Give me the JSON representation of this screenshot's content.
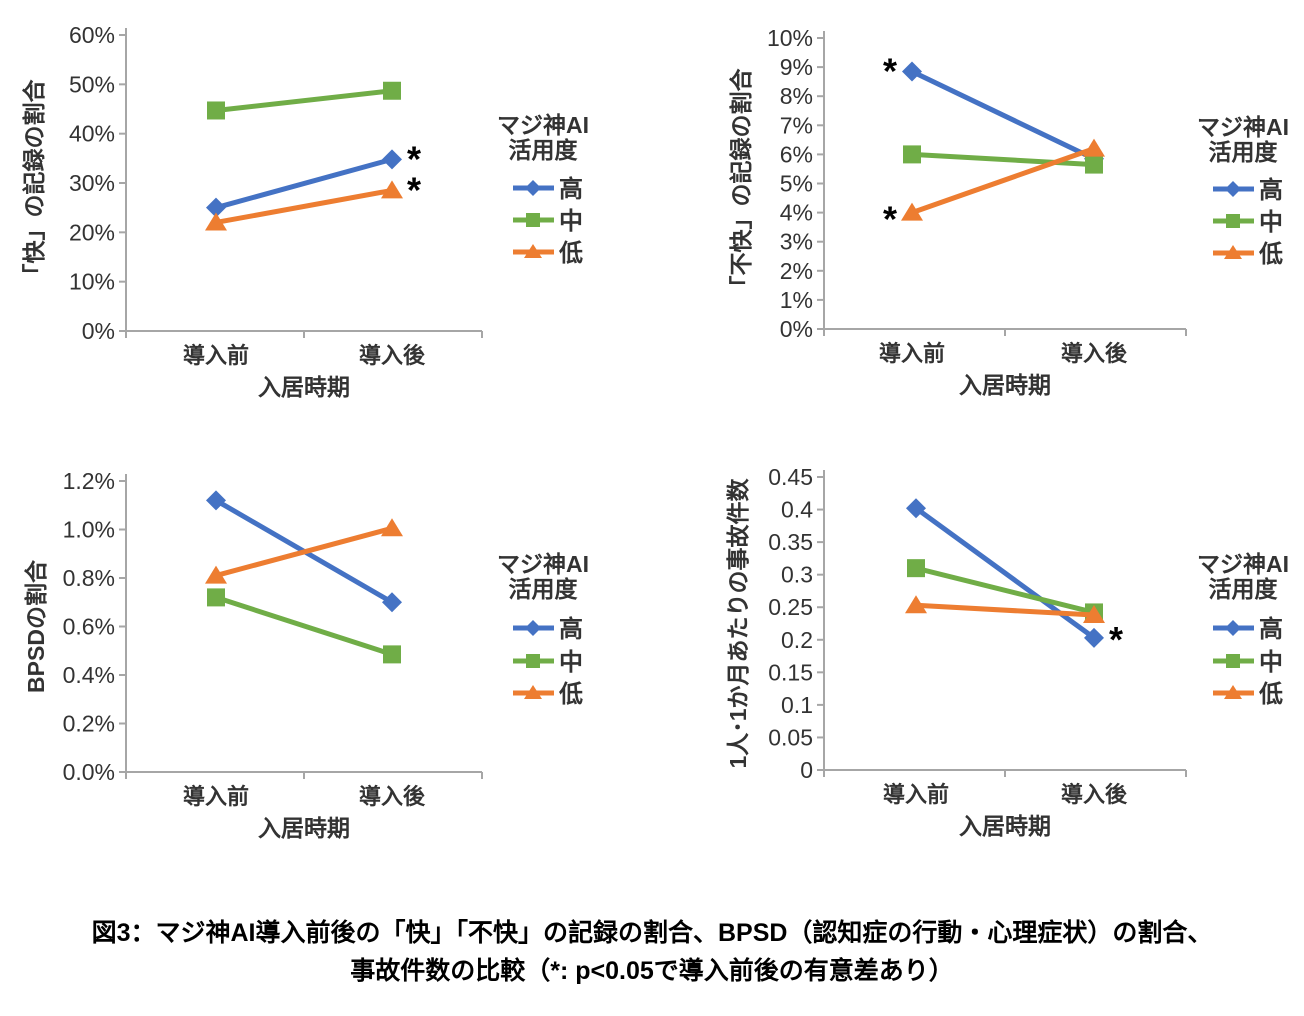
{
  "figure": {
    "caption_line1": "図3：マジ神AI導入前後の「快」「不快」の記録の割合、BPSD（認知症の行動・心理症状）の割合、",
    "caption_line2": "事故件数の比較（*: p<0.05で導入前後の有意差あり）"
  },
  "colors": {
    "high": "#4472C4",
    "mid": "#70AD47",
    "low": "#ED7D31",
    "axis": "#A6A6A6",
    "text": "#333333",
    "asterisk": "#000000"
  },
  "legend": {
    "title_line1": "マジ神AI",
    "title_line2": "活用度",
    "items": [
      {
        "key": "high",
        "label": "高",
        "marker": "diamond"
      },
      {
        "key": "mid",
        "label": "中",
        "marker": "square"
      },
      {
        "key": "low",
        "label": "低",
        "marker": "triangle"
      }
    ]
  },
  "chart_data": [
    {
      "panel": "pleasant-records-ratio",
      "type": "line",
      "title": "",
      "ylabel": "「快」の記録の割合",
      "xlabel": "入居時期",
      "categories": [
        "導入前",
        "導入後"
      ],
      "ylim": [
        0,
        60
      ],
      "ytick_labels": [
        "0%",
        "10%",
        "20%",
        "30%",
        "40%",
        "50%",
        "60%"
      ],
      "grid": false,
      "legend_position": "right",
      "series": [
        {
          "key": "high",
          "name": "高",
          "marker": "diamond",
          "color": "#4472C4",
          "values": [
            25.0,
            34.8
          ]
        },
        {
          "key": "mid",
          "name": "中",
          "marker": "square",
          "color": "#70AD47",
          "values": [
            44.7,
            48.7
          ]
        },
        {
          "key": "low",
          "name": "低",
          "marker": "triangle",
          "color": "#ED7D31",
          "values": [
            22.0,
            28.5
          ]
        }
      ],
      "sig_marks": [
        {
          "series": 0,
          "point": 1,
          "side": "right",
          "dy": 12
        },
        {
          "series": 2,
          "point": 1,
          "side": "right",
          "dy": 12
        }
      ]
    },
    {
      "panel": "unpleasant-records-ratio",
      "type": "line",
      "title": "",
      "ylabel": "「不快」の記録の割合",
      "xlabel": "入居時期",
      "categories": [
        "導入前",
        "導入後"
      ],
      "ylim": [
        0,
        10
      ],
      "ytick_labels": [
        "0%",
        "1%",
        "2%",
        "3%",
        "4%",
        "5%",
        "6%",
        "7%",
        "8%",
        "9%",
        "10%"
      ],
      "grid": false,
      "legend_position": "right",
      "series": [
        {
          "key": "high",
          "name": "高",
          "marker": "diamond",
          "color": "#4472C4",
          "values": [
            8.85,
            5.85
          ]
        },
        {
          "key": "mid",
          "name": "中",
          "marker": "square",
          "color": "#70AD47",
          "values": [
            6.0,
            5.65
          ]
        },
        {
          "key": "low",
          "name": "低",
          "marker": "triangle",
          "color": "#ED7D31",
          "values": [
            4.0,
            6.2
          ]
        }
      ],
      "sig_marks": [
        {
          "series": 0,
          "point": 0,
          "side": "left",
          "dy": 12
        },
        {
          "series": 2,
          "point": 0,
          "side": "left",
          "dy": 19
        }
      ]
    },
    {
      "panel": "bpsd-ratio",
      "type": "line",
      "title": "",
      "ylabel": "BPSDの割合",
      "xlabel": "入居時期",
      "categories": [
        "導入前",
        "導入後"
      ],
      "ylim": [
        0,
        1.2
      ],
      "ytick_labels": [
        "0.0%",
        "0.2%",
        "0.4%",
        "0.6%",
        "0.8%",
        "1.0%",
        "1.2%"
      ],
      "grid": false,
      "legend_position": "right",
      "series": [
        {
          "key": "high",
          "name": "高",
          "marker": "diamond",
          "color": "#4472C4",
          "values": [
            1.12,
            0.7
          ]
        },
        {
          "key": "mid",
          "name": "中",
          "marker": "square",
          "color": "#70AD47",
          "values": [
            0.72,
            0.485
          ]
        },
        {
          "key": "low",
          "name": "低",
          "marker": "triangle",
          "color": "#ED7D31",
          "values": [
            0.81,
            1.005
          ]
        }
      ],
      "sig_marks": []
    },
    {
      "panel": "accidents-per-person-month",
      "type": "line",
      "title": "",
      "ylabel": "1人･1か月あたりの事故件数",
      "xlabel": "入居時期",
      "categories": [
        "導入前",
        "導入後"
      ],
      "ylim": [
        0,
        0.45
      ],
      "ytick_labels": [
        "0",
        "0.05",
        "0.1",
        "0.15",
        "0.2",
        "0.25",
        "0.3",
        "0.35",
        "0.4",
        "0.45"
      ],
      "grid": false,
      "legend_position": "right",
      "series": [
        {
          "key": "high",
          "name": "高",
          "marker": "diamond",
          "color": "#4472C4",
          "values": [
            0.402,
            0.203
          ]
        },
        {
          "key": "mid",
          "name": "中",
          "marker": "square",
          "color": "#70AD47",
          "values": [
            0.31,
            0.242
          ]
        },
        {
          "key": "low",
          "name": "低",
          "marker": "triangle",
          "color": "#ED7D31",
          "values": [
            0.253,
            0.238
          ]
        }
      ],
      "sig_marks": [
        {
          "series": 0,
          "point": 1,
          "side": "right",
          "dy": 14
        }
      ]
    }
  ]
}
